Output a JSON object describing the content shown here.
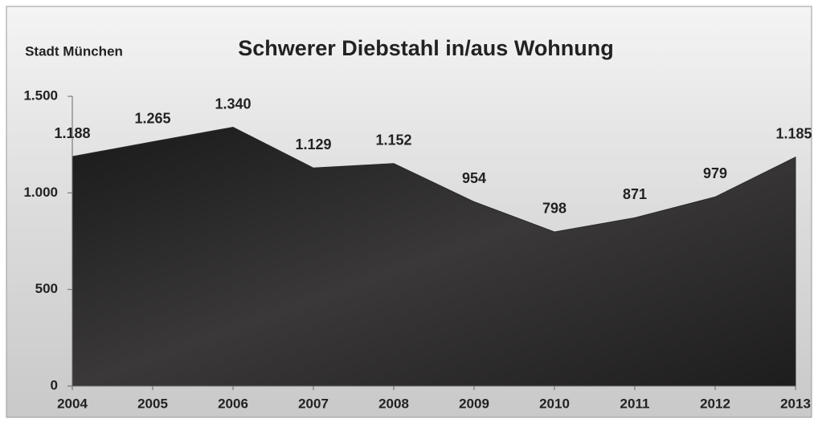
{
  "chart_data": {
    "type": "area",
    "title": "Schwerer Diebstahl in/aus Wohnung",
    "subtitle": "Stadt München",
    "categories": [
      "2004",
      "2005",
      "2006",
      "2007",
      "2008",
      "2009",
      "2010",
      "2011",
      "2012",
      "2013"
    ],
    "series": [
      {
        "name": "Schwerer Diebstahl",
        "color": "#2a2a2a",
        "values": [
          1188,
          1265,
          1340,
          1129,
          1152,
          954,
          798,
          871,
          979,
          1185
        ],
        "value_labels": [
          "1.188",
          "1.265",
          "1.340",
          "1.129",
          "1.152",
          "954",
          "798",
          "871",
          "979",
          "1.185"
        ]
      }
    ],
    "ylim": [
      0,
      1500
    ],
    "yticks": [
      0,
      500,
      {
        "value": 1000,
        "label": "1.000"
      },
      {
        "value": 1500,
        "label": "1.500"
      }
    ]
  }
}
